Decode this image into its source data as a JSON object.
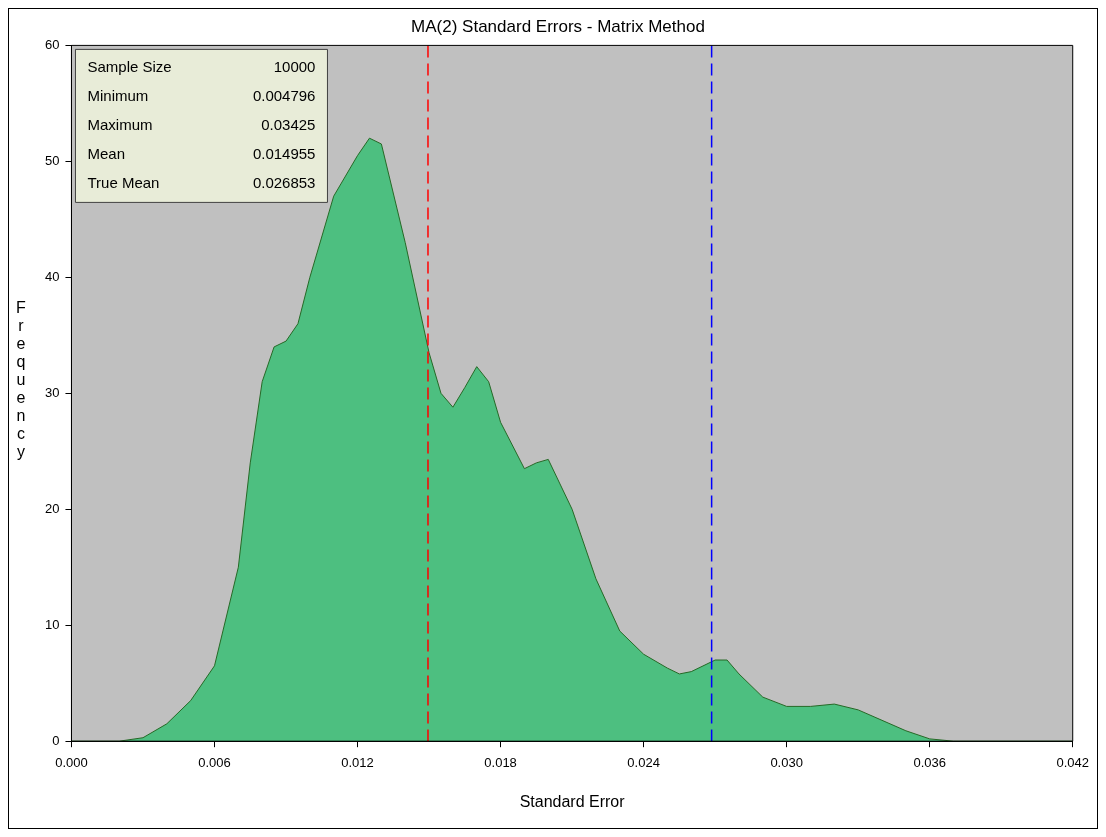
{
  "chart_data": {
    "type": "area",
    "title": "MA(2) Standard Errors - Matrix Method",
    "xlabel": "Standard Error",
    "ylabel": "Frequency",
    "x": [
      0,
      0.002,
      0.003,
      0.004,
      0.005,
      0.006,
      0.007,
      0.0075,
      0.008,
      0.0085,
      0.009,
      0.0095,
      0.01,
      0.011,
      0.012,
      0.0125,
      0.013,
      0.014,
      0.015,
      0.0155,
      0.016,
      0.0165,
      0.017,
      0.0175,
      0.018,
      0.019,
      0.0195,
      0.02,
      0.021,
      0.022,
      0.023,
      0.024,
      0.025,
      0.0255,
      0.026,
      0.027,
      0.0275,
      0.028,
      0.029,
      0.03,
      0.031,
      0.032,
      0.033,
      0.034,
      0.035,
      0.036,
      0.037,
      0.042
    ],
    "series": [
      {
        "color": "#4dbf80",
        "values": [
          0,
          0,
          0.3,
          1.5,
          3.5,
          6.5,
          15,
          24,
          31,
          34,
          34.5,
          36,
          40,
          47,
          50.5,
          52,
          51.5,
          43,
          33.5,
          30,
          28.8,
          30.5,
          32.3,
          31,
          27.5,
          23.5,
          24,
          24.3,
          20,
          14,
          9.5,
          7.5,
          6.3,
          5.8,
          6,
          7,
          7,
          5.8,
          3.8,
          3,
          3,
          3.2,
          2.7,
          1.8,
          0.9,
          0.2,
          0,
          0
        ]
      }
    ],
    "xlim": [
      0,
      0.042
    ],
    "ylim": [
      0,
      60
    ],
    "xticks": [
      {
        "value": 0,
        "label": "0.000"
      },
      {
        "value": 0.006,
        "label": "0.006"
      },
      {
        "value": 0.012,
        "label": "0.012"
      },
      {
        "value": 0.018,
        "label": "0.018"
      },
      {
        "value": 0.024,
        "label": "0.024"
      },
      {
        "value": 0.03,
        "label": "0.030"
      },
      {
        "value": 0.036,
        "label": "0.036"
      },
      {
        "value": 0.042,
        "label": "0.042"
      }
    ],
    "yticks": [
      0,
      10,
      20,
      30,
      40,
      50,
      60
    ],
    "ref_lines": [
      {
        "axis": "x",
        "value": 0.014955,
        "color": "#ff0000",
        "line_style": "dashed"
      },
      {
        "axis": "x",
        "value": 0.026853,
        "color": "#0000ff",
        "line_style": "dashed"
      }
    ],
    "annotations": [
      "Sample Size 10000",
      "Minimum 0.004796",
      "Maximum 0.03425",
      "Mean 0.014955",
      "True Mean 0.026853"
    ],
    "grid": false,
    "legend": false
  }
}
